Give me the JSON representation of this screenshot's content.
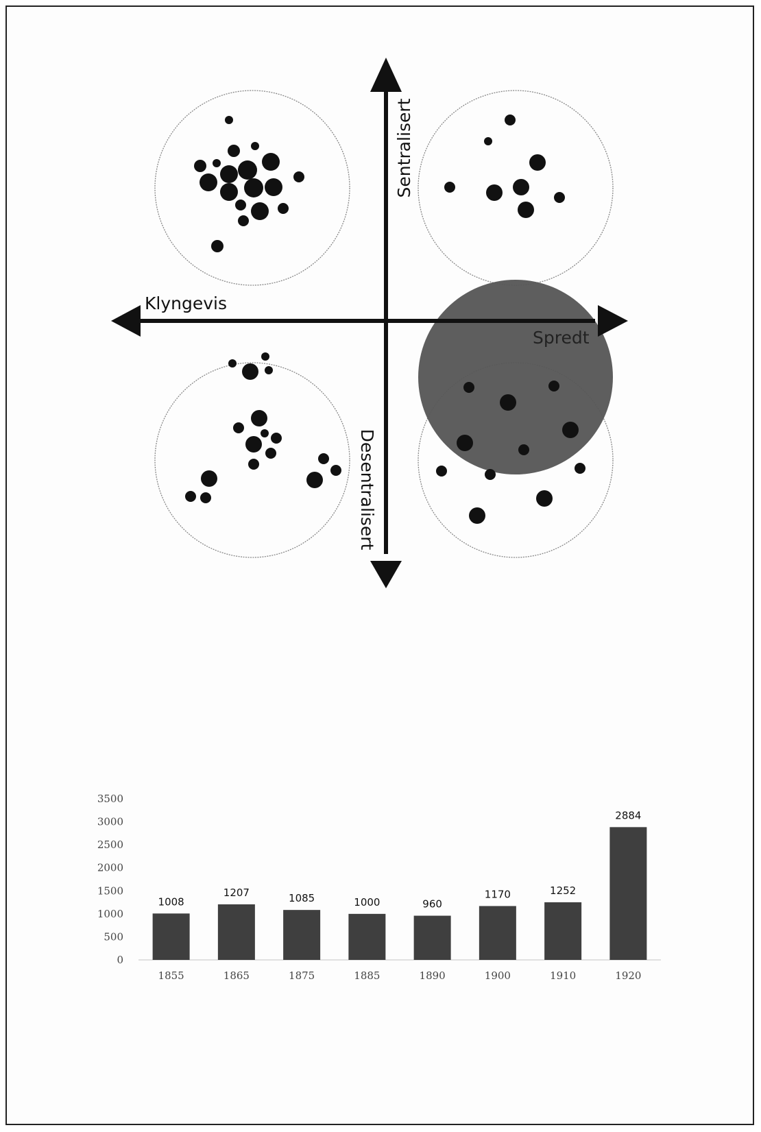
{
  "diagram": {
    "labels": {
      "north": "Sentralisert",
      "south": "Desentralisert",
      "west": "Klyngevis",
      "east": "Spredt"
    },
    "colors": {
      "dots": "#111111",
      "highlight": "#575757",
      "circle_outline": "#888888"
    }
  },
  "chart_data": {
    "type": "bar",
    "categories": [
      "1855",
      "1865",
      "1875",
      "1885",
      "1890",
      "1900",
      "1910",
      "1920"
    ],
    "values": [
      1008,
      1207,
      1085,
      1000,
      960,
      1170,
      1252,
      2884
    ],
    "ylim": [
      0,
      3500
    ],
    "yticks": [
      0,
      500,
      1000,
      1500,
      2000,
      2500,
      3000,
      3500
    ],
    "bar_color": "#3f3f3f",
    "grid": false,
    "legend": "none"
  }
}
